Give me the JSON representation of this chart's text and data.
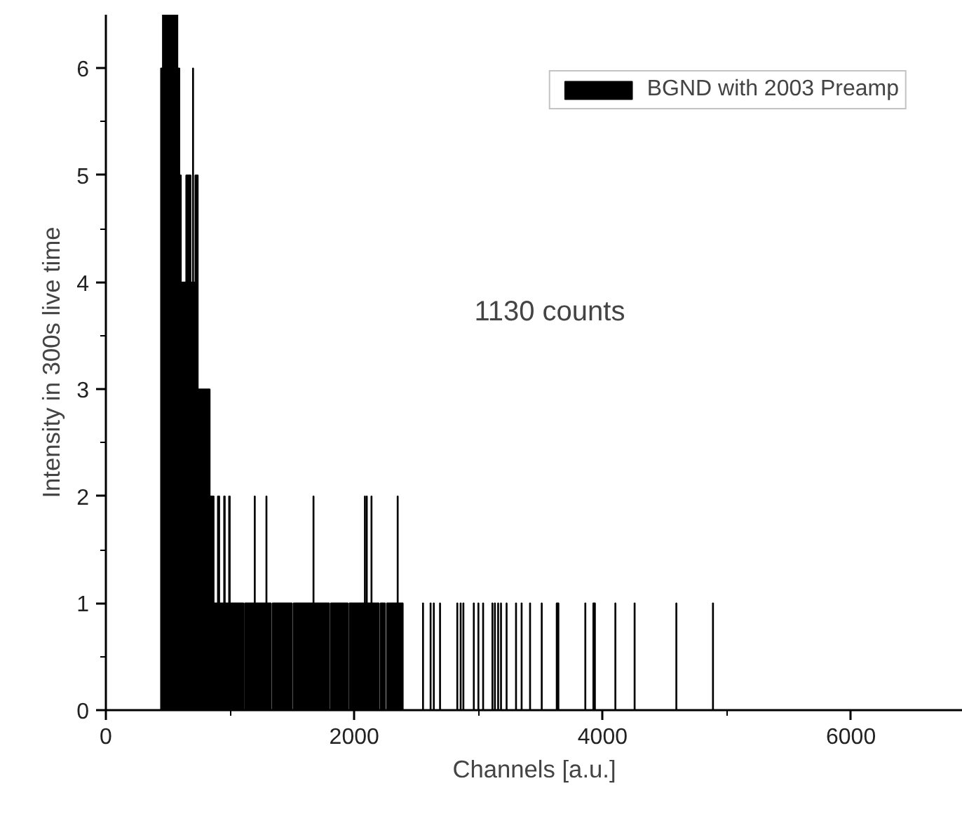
{
  "chart_data": {
    "type": "histogram",
    "xlabel": "Channels [a.u.]",
    "ylabel": "Intensity in 300s live time",
    "annotations": [
      "1130 counts"
    ],
    "bins": [
      0,
      442,
      457,
      578,
      594,
      606,
      645,
      684,
      699,
      705,
      719,
      742,
      838,
      870,
      900,
      915,
      950,
      960,
      990,
      1000,
      1110,
      1118,
      1196,
      1202,
      1290,
      1296,
      1330,
      1340,
      1500,
      1510,
      1669,
      1675,
      1800,
      1810,
      1950,
      1960,
      2083,
      2089,
      2098,
      2104,
      2136,
      2142,
      2200,
      2210,
      2250,
      2262,
      2347,
      2353,
      2393,
      2551,
      2557,
      2612,
      2618,
      2638,
      2644,
      2688,
      2694,
      2827,
      2833,
      2854,
      2860,
      2876,
      2882,
      2960,
      2966,
      2997,
      3003,
      3035,
      3041,
      3110,
      3116,
      3130,
      3136,
      3156,
      3162,
      3179,
      3185,
      3224,
      3230,
      3300,
      3306,
      3345,
      3351,
      3413,
      3419,
      3507,
      3513,
      3628,
      3647,
      3858,
      3864,
      3923,
      3941,
      4100,
      4106,
      4255,
      4261,
      4591,
      4597,
      4886,
      4892
    ],
    "series": [
      {
        "name": "BGND with 2003 Preamp",
        "color": "#000000",
        "values": [
          0,
          6,
          6.5,
          6,
          5,
          4,
          5,
          4,
          6,
          4,
          5,
          3,
          2,
          1,
          2,
          1,
          2,
          1,
          2,
          1,
          0,
          1,
          2,
          1,
          2,
          1,
          0,
          1,
          0,
          1,
          2,
          1,
          0,
          1,
          0,
          1,
          2,
          1,
          2,
          1,
          2,
          1,
          0,
          1,
          0,
          1,
          2,
          1,
          0,
          1,
          0,
          1,
          0,
          1,
          0,
          1,
          0,
          1,
          0,
          1,
          0,
          1,
          0,
          1,
          0,
          1,
          0,
          1,
          0,
          1,
          0,
          1,
          0,
          1,
          0,
          1,
          0,
          1,
          0,
          1,
          0,
          1,
          0,
          1,
          0,
          1,
          0,
          1,
          0,
          1,
          0,
          1,
          0,
          1,
          0,
          1,
          0,
          1,
          0,
          1
        ]
      }
    ],
    "xlim": [
      0,
      6900
    ],
    "ylim": [
      0,
      6.5
    ],
    "xticks": [
      0,
      {
        "value": 1000,
        "label": null
      },
      2000,
      {
        "value": 3000,
        "label": null
      },
      4000,
      {
        "value": 5000,
        "label": null
      },
      6000
    ],
    "yticks": [
      0,
      {
        "value": 0.5,
        "label": null
      },
      1,
      {
        "value": 1.5,
        "label": null
      },
      2,
      {
        "value": 2.5,
        "label": null
      },
      3,
      {
        "value": 3.5,
        "label": null
      },
      4,
      {
        "value": 4.5,
        "label": null
      },
      5,
      {
        "value": 5.5,
        "label": null
      },
      6
    ],
    "grid": false,
    "legend": "top right"
  }
}
